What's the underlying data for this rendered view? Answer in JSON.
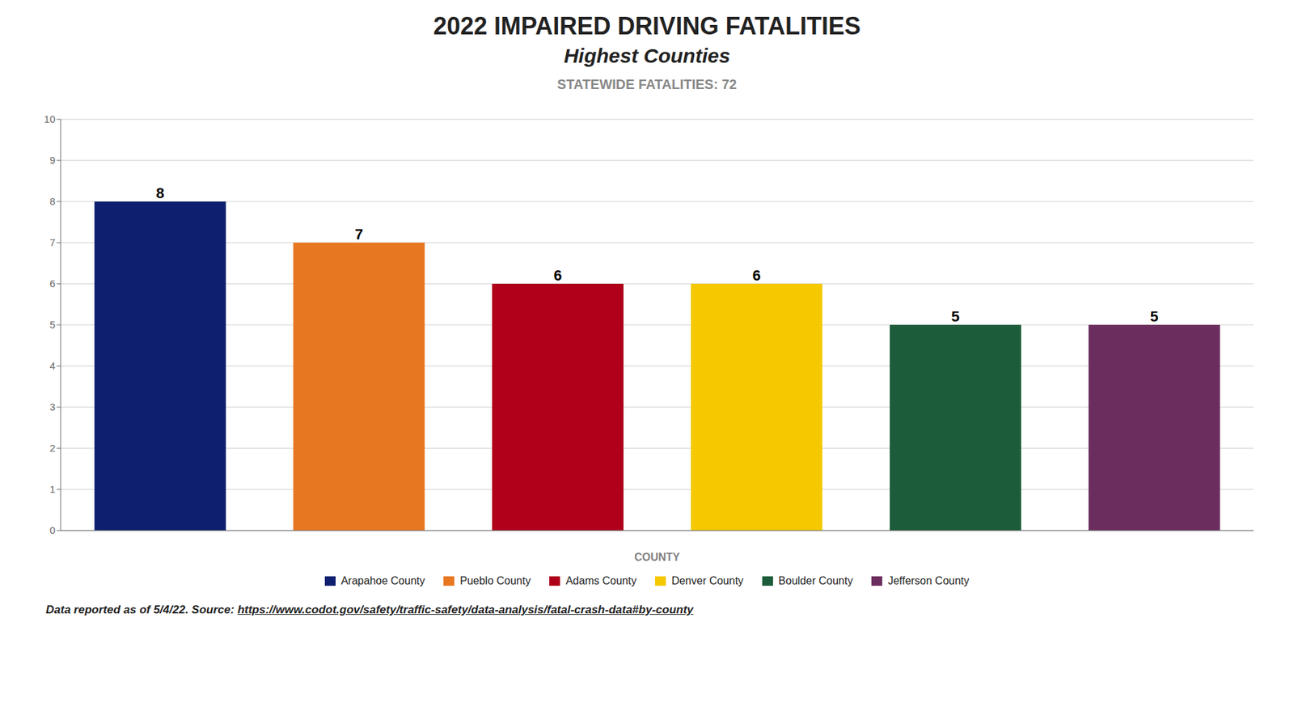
{
  "chart_data": {
    "type": "bar",
    "title": "2022 IMPAIRED DRIVING FATALITIES",
    "subtitle": "Highest Counties",
    "annotations": [
      "STATEWIDE FATALITIES: 72",
      "Data reported as of 5/4/22. Source: ",
      "https://www.codot.gov/safety/traffic-safety/data-analysis/fatal-crash-data#by-county"
    ],
    "categories": [
      "Arapahoe County",
      "Pueblo County",
      "Adams County",
      "Denver County",
      "Boulder County",
      "Jefferson County"
    ],
    "values": [
      8,
      7,
      6,
      6,
      5,
      5
    ],
    "colors": [
      "#0d1f6e",
      "#e87722",
      "#b0001a",
      "#f5c800",
      "#1d5c3a",
      "#6b2d5e"
    ],
    "xlabel": "COUNTY",
    "ylim": [
      0,
      10
    ],
    "yticks": [
      0,
      1,
      2,
      3,
      4,
      5,
      6,
      7,
      8,
      9,
      10
    ],
    "grid": true,
    "legend": "bottom",
    "data_labels": true,
    "tick_labels": "y"
  }
}
